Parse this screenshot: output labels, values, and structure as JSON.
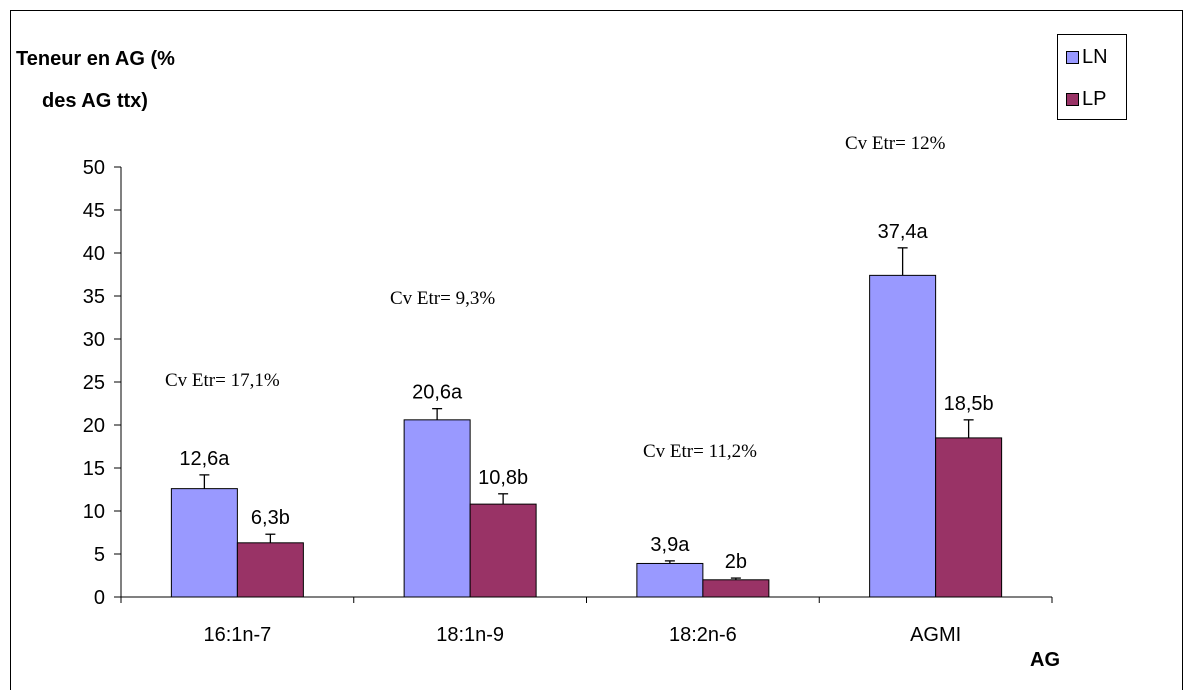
{
  "chart_data": {
    "type": "bar",
    "ylabel_line1": "Teneur en AG (%",
    "ylabel_line2": "des AG ttx)",
    "xlabel": "AG",
    "ylim": [
      0,
      50
    ],
    "yticks": [
      0,
      5,
      10,
      15,
      20,
      25,
      30,
      35,
      40,
      45,
      50
    ],
    "categories": [
      "16:1n-7",
      "18:1n-9",
      "18:2n-6",
      "AGMI"
    ],
    "series": [
      {
        "name": "LN",
        "color": "#9999ff",
        "values": [
          12.6,
          20.6,
          3.9,
          37.4
        ],
        "errors": [
          1.6,
          1.3,
          0.3,
          3.2
        ],
        "labels": [
          "12,6a",
          "20,6a",
          "3,9a",
          "37,4a"
        ]
      },
      {
        "name": "LP",
        "color": "#993366",
        "values": [
          6.3,
          10.8,
          2.0,
          18.5
        ],
        "errors": [
          1.0,
          1.2,
          0.2,
          2.1
        ],
        "labels": [
          "6,3b",
          "10,8b",
          "2b",
          "18,5b"
        ]
      }
    ],
    "annotations": [
      "Cv Etr= 17,1%",
      "Cv Etr= 9,3%",
      "Cv Etr= 11,2%",
      "Cv Etr= 12%"
    ],
    "grid": false,
    "legend_position": "top-right"
  }
}
